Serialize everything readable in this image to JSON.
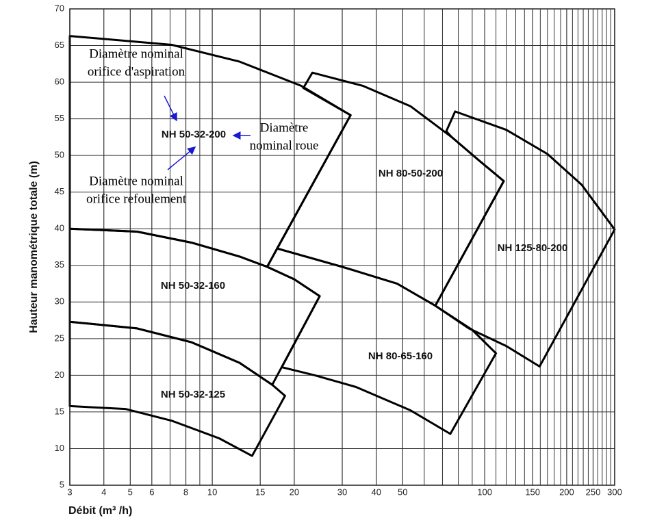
{
  "chart_data": {
    "type": "region",
    "xlabel": "Débit (m³ /h)",
    "ylabel": "Hauteur manométrique totale (m)",
    "xscale": "log",
    "xlim": [
      3,
      300
    ],
    "ylim": [
      5,
      70
    ],
    "xticks": [
      3,
      4,
      5,
      6,
      8,
      10,
      15,
      20,
      30,
      40,
      50,
      100,
      150,
      200,
      250,
      300
    ],
    "xminor": [
      7,
      9,
      60,
      70,
      80,
      90,
      110,
      120,
      130,
      140,
      160,
      170,
      180,
      190,
      210,
      220,
      230,
      240,
      260,
      270,
      280,
      290
    ],
    "yticks": [
      5,
      10,
      15,
      20,
      25,
      30,
      35,
      40,
      45,
      50,
      55,
      60,
      65,
      70
    ],
    "grid": true,
    "color": "#000000",
    "series": [
      {
        "name": "NH 50-32-125",
        "x": [
          3,
          4.8,
          7.1,
          10.6,
          14,
          18.5,
          16.6,
          12.6,
          8.4,
          5.3,
          3
        ],
        "values": [
          15.8,
          15.4,
          13.8,
          11.4,
          9.0,
          17.2,
          18.7,
          21.7,
          24.5,
          26.4,
          27.3
        ]
      },
      {
        "name": "NH 50-32-160",
        "x": [
          3,
          5.3,
          8.4,
          12.6,
          16.6,
          24.8,
          20.0,
          15.9,
          12.6,
          8.4,
          5.3,
          3
        ],
        "values": [
          27.3,
          26.4,
          24.5,
          21.7,
          18.7,
          30.8,
          33.1,
          34.8,
          36.2,
          38.1,
          39.6,
          40.0
        ]
      },
      {
        "name": "NH 50-32-200",
        "x": [
          3,
          7.1,
          12.6,
          21.2,
          32.2,
          15.9,
          12.6,
          8.4,
          5.3,
          3
        ],
        "values": [
          66.3,
          65.1,
          62.8,
          59.5,
          55.5,
          34.8,
          36.2,
          38.1,
          39.6,
          40.0
        ]
      },
      {
        "name": "NH 80-50-200",
        "x": [
          21.6,
          23.3,
          35.7,
          53.5,
          75.7,
          95.4,
          117.5,
          65.9,
          47.7,
          30,
          17.3,
          32.2
        ],
        "values": [
          59.2,
          61.3,
          59.5,
          56.7,
          52.5,
          49.3,
          46.5,
          29.5,
          32.5,
          34.8,
          37.3,
          55.5
        ]
      },
      {
        "name": "NH 80-65-160",
        "x": [
          17.3,
          30,
          47.7,
          65.9,
          90,
          110,
          74.8,
          53.5,
          33.7,
          23.8,
          18.0,
          24.8,
          20.0,
          15.9
        ],
        "values": [
          37.3,
          34.8,
          32.5,
          29.5,
          26.2,
          23.0,
          12.0,
          15.2,
          18.4,
          20.0,
          21.1,
          30.8,
          33.1,
          34.8
        ]
      },
      {
        "name": "NH 125-80-200",
        "x": [
          72.3,
          77.9,
          120,
          170,
          227,
          300,
          159,
          120,
          87.5,
          65.9,
          117.5,
          95.4,
          75.7
        ],
        "values": [
          53.3,
          56.0,
          53.5,
          50.2,
          46.0,
          39.9,
          21.2,
          24.0,
          26.4,
          29.5,
          46.5,
          49.3,
          52.5
        ]
      }
    ],
    "annotations": [
      {
        "lines": [
          "Diamètre nominal",
          "orifice d'aspiration"
        ]
      },
      {
        "lines": [
          "Diamètre",
          "nominal roue"
        ]
      },
      {
        "lines": [
          "Diamètre nominal",
          "orifice refoulement"
        ]
      }
    ]
  }
}
